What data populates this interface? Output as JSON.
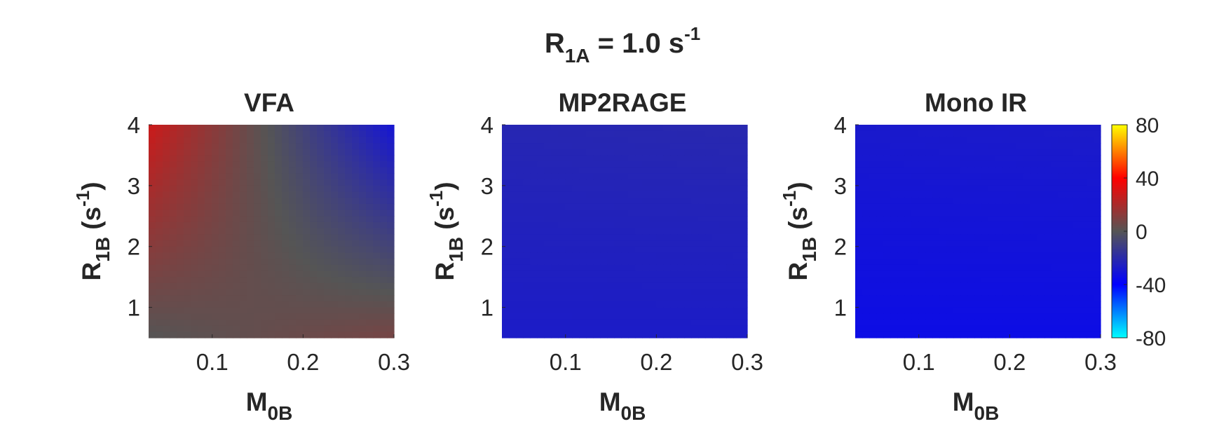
{
  "figure": {
    "title_main": "R",
    "title_sub": "1A",
    "title_rest": " = 1.0 s",
    "title_sup": "-1"
  },
  "axis_labels": {
    "x_main": "M",
    "x_sub": "0B",
    "y_main": "R",
    "y_sub": "1B",
    "y_rest": " (s",
    "y_sup": "-1",
    "y_close": ")"
  },
  "chart_data": [
    {
      "type": "heatmap",
      "title": "VFA",
      "x_ticks": [
        "0.1",
        "0.2",
        "0.3"
      ],
      "y_ticks": [
        "1",
        "2",
        "3",
        "4"
      ],
      "xlim": [
        0.03,
        0.3
      ],
      "ylim": [
        0.5,
        4
      ],
      "corner_values": {
        "x_min_y_max": 28,
        "x_max_y_max": -30,
        "x_min_y_min": 0,
        "x_max_y_min": 8
      },
      "pattern": "positive (red) at low M0B / high R1B, near zero in the middle, negative (blue) at high M0B / high R1B, slightly positive at high M0B / low R1B"
    },
    {
      "type": "heatmap",
      "title": "MP2RAGE",
      "x_ticks": [
        "0.1",
        "0.2",
        "0.3"
      ],
      "y_ticks": [
        "1",
        "2",
        "3",
        "4"
      ],
      "xlim": [
        0.03,
        0.3
      ],
      "ylim": [
        0.5,
        4
      ],
      "corner_values": {
        "x_min_y_max": -22,
        "x_max_y_max": -21,
        "x_min_y_min": -27,
        "x_max_y_min": -27
      },
      "pattern": "uniform moderate negative values, slightly less negative at high R1B"
    },
    {
      "type": "heatmap",
      "title": "Mono IR",
      "x_ticks": [
        "0.1",
        "0.2",
        "0.3"
      ],
      "y_ticks": [
        "1",
        "2",
        "3",
        "4"
      ],
      "xlim": [
        0.03,
        0.3
      ],
      "ylim": [
        0.5,
        4
      ],
      "corner_values": {
        "x_min_y_max": -28,
        "x_max_y_max": -27,
        "x_min_y_min": -34,
        "x_max_y_min": -34
      },
      "pattern": "uniform negative values, more negative at low R1B"
    }
  ],
  "colorbar": {
    "ticks": [
      "80",
      "40",
      "0",
      "-40",
      "-80"
    ],
    "range": [
      -80,
      80
    ],
    "colormap": [
      "#00ffff",
      "#0000ff",
      "#555555",
      "#ff0000",
      "#ffff00"
    ]
  }
}
